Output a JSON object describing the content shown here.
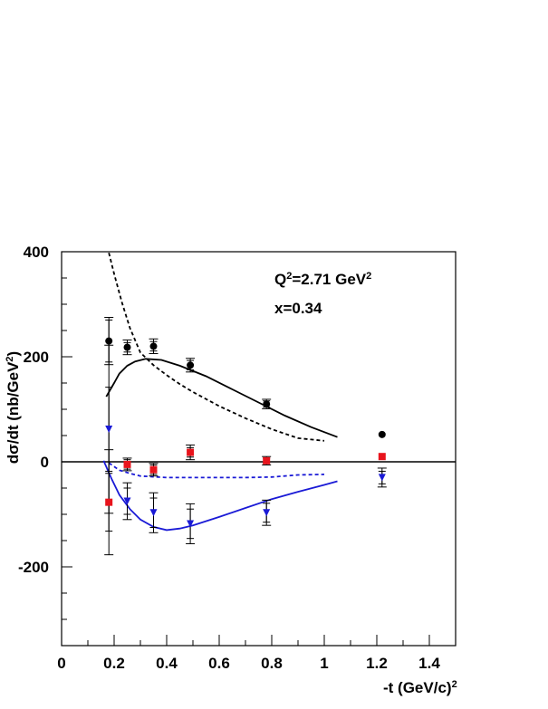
{
  "chart_data": {
    "type": "scatter",
    "xlabel": "-t (GeV/c)",
    "xlabel_sup": "2",
    "ylabel": "dσ/dt (nb/GeV",
    "ylabel_sup": "2",
    "ylabel_close": ")",
    "xlim": [
      0,
      1.5
    ],
    "ylim": [
      -350,
      400
    ],
    "x_ticks": [
      {
        "value": 0,
        "label": "0"
      },
      {
        "value": 0.2,
        "label": "0.2"
      },
      {
        "value": 0.4,
        "label": "0.4"
      },
      {
        "value": 0.6,
        "label": "0.6"
      },
      {
        "value": 0.8,
        "label": "0.8"
      },
      {
        "value": 1.0,
        "label": "1"
      },
      {
        "value": 1.2,
        "label": "1.2"
      },
      {
        "value": 1.4,
        "label": "1.4"
      }
    ],
    "y_ticks": [
      {
        "value": 400,
        "label": "400"
      },
      {
        "value": 200,
        "label": "200"
      },
      {
        "value": 0,
        "label": "0"
      },
      {
        "value": -200,
        "label": "-200"
      }
    ],
    "annotations": {
      "q2_prefix": "Q",
      "q2_sup": "2",
      "q2_value": "=2.71 GeV",
      "q2_unit_sup": "2",
      "x_label": "x=0.34"
    },
    "colors": {
      "black": "#000000",
      "red": "#e8141c",
      "blue": "#1a1ad6"
    },
    "series": [
      {
        "marker": "circle",
        "color": "#000000",
        "points": [
          {
            "x": 0.18,
            "y": 230,
            "err_in": 40,
            "err_out": 45
          },
          {
            "x": 0.25,
            "y": 218,
            "err_in": 9,
            "err_out": 14
          },
          {
            "x": 0.35,
            "y": 220,
            "err_in": 9,
            "err_out": 14
          },
          {
            "x": 0.49,
            "y": 184,
            "err_in": 9,
            "err_out": 13
          },
          {
            "x": 0.78,
            "y": 110,
            "err_in": 6,
            "err_out": 9
          },
          {
            "x": 1.22,
            "y": 52,
            "err_in": 0,
            "err_out": 0
          }
        ]
      },
      {
        "marker": "square",
        "color": "#e8141c",
        "points": [
          {
            "x": 0.18,
            "y": -77,
            "err_in": 55,
            "err_out": 100
          },
          {
            "x": 0.25,
            "y": -5,
            "err_in": 9,
            "err_out": 12
          },
          {
            "x": 0.35,
            "y": -15,
            "err_in": 9,
            "err_out": 12
          },
          {
            "x": 0.49,
            "y": 18,
            "err_in": 9,
            "err_out": 14
          },
          {
            "x": 0.78,
            "y": 2,
            "err_in": 5,
            "err_out": 8
          },
          {
            "x": 1.22,
            "y": 10,
            "err_in": 0,
            "err_out": 0
          }
        ]
      },
      {
        "marker": "triangle-down",
        "color": "#1a1ad6",
        "points": [
          {
            "x": 0.18,
            "y": 62,
            "err_in": 80,
            "err_out": 160
          },
          {
            "x": 0.25,
            "y": -75,
            "err_in": 25,
            "err_out": 35
          },
          {
            "x": 0.35,
            "y": -97,
            "err_in": 28,
            "err_out": 38
          },
          {
            "x": 0.49,
            "y": -118,
            "err_in": 28,
            "err_out": 38
          },
          {
            "x": 0.78,
            "y": -97,
            "err_in": 18,
            "err_out": 24
          },
          {
            "x": 1.22,
            "y": -30,
            "err_in": 12,
            "err_out": 18
          }
        ]
      }
    ],
    "curves": [
      {
        "color": "#000000",
        "dashed": false,
        "points": [
          [
            0.17,
            124
          ],
          [
            0.2,
            150
          ],
          [
            0.22,
            168
          ],
          [
            0.25,
            183
          ],
          [
            0.28,
            191
          ],
          [
            0.32,
            196
          ],
          [
            0.38,
            194
          ],
          [
            0.45,
            183
          ],
          [
            0.55,
            163
          ],
          [
            0.65,
            138
          ],
          [
            0.75,
            113
          ],
          [
            0.85,
            88
          ],
          [
            0.95,
            66
          ],
          [
            1.05,
            47
          ]
        ]
      },
      {
        "color": "#000000",
        "dashed": true,
        "points": [
          [
            0.18,
            398
          ],
          [
            0.2,
            358
          ],
          [
            0.23,
            303
          ],
          [
            0.26,
            255
          ],
          [
            0.3,
            208
          ],
          [
            0.35,
            184
          ],
          [
            0.4,
            165
          ],
          [
            0.45,
            148
          ],
          [
            0.5,
            133
          ],
          [
            0.6,
            106
          ],
          [
            0.7,
            83
          ],
          [
            0.8,
            62
          ],
          [
            0.9,
            45
          ],
          [
            1.0,
            40
          ]
        ]
      },
      {
        "color": "#1a1ad6",
        "dashed": false,
        "points": [
          [
            0.16,
            2
          ],
          [
            0.19,
            -32
          ],
          [
            0.22,
            -63
          ],
          [
            0.26,
            -90
          ],
          [
            0.3,
            -110
          ],
          [
            0.35,
            -124
          ],
          [
            0.4,
            -130
          ],
          [
            0.45,
            -127
          ],
          [
            0.5,
            -121
          ],
          [
            0.6,
            -105
          ],
          [
            0.7,
            -88
          ],
          [
            0.8,
            -71
          ],
          [
            0.9,
            -57
          ],
          [
            1.0,
            -44
          ],
          [
            1.05,
            -37
          ]
        ]
      },
      {
        "color": "#1a1ad6",
        "dashed": true,
        "points": [
          [
            0.18,
            -2
          ],
          [
            0.22,
            -16
          ],
          [
            0.26,
            -22
          ],
          [
            0.3,
            -27
          ],
          [
            0.4,
            -30
          ],
          [
            0.5,
            -30
          ],
          [
            0.6,
            -30
          ],
          [
            0.7,
            -30
          ],
          [
            0.8,
            -29
          ],
          [
            0.9,
            -25
          ],
          [
            1.0,
            -24
          ]
        ]
      }
    ]
  }
}
